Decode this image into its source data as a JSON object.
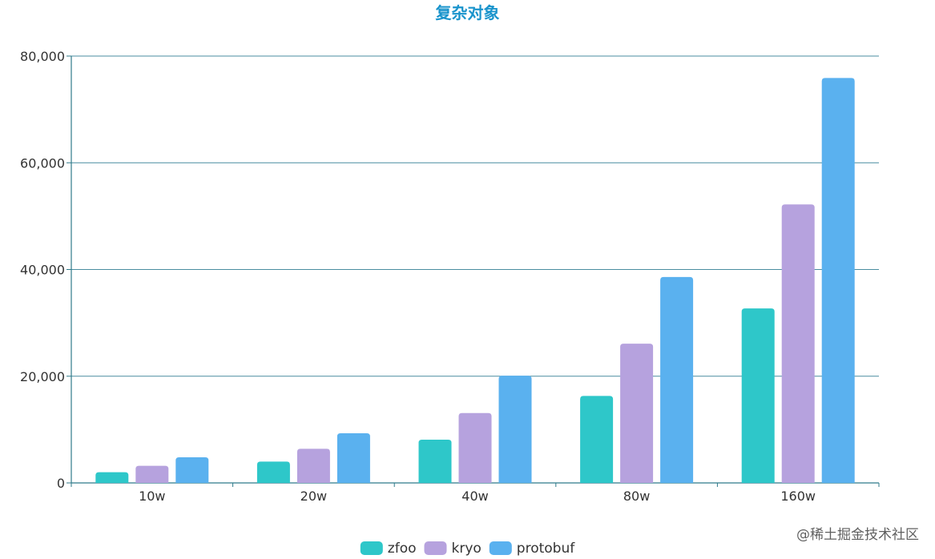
{
  "title": "复杂对象",
  "watermark": "@稀土掘金技术社区",
  "colors": {
    "title": "#1a94cc",
    "axis": "#2f7a8a",
    "grid": "#4a8ea0",
    "text": "#333333",
    "watermark": "#444444"
  },
  "chart_data": {
    "type": "bar",
    "categories": [
      "10w",
      "20w",
      "40w",
      "80w",
      "160w"
    ],
    "series": [
      {
        "name": "zfoo",
        "color": "#2ec7c9",
        "values": [
          2000,
          4000,
          8100,
          16300,
          32700
        ]
      },
      {
        "name": "kryo",
        "color": "#b6a2de",
        "values": [
          3200,
          6400,
          13100,
          26100,
          52200
        ]
      },
      {
        "name": "protobuf",
        "color": "#5ab1ef",
        "values": [
          4800,
          9300,
          20100,
          38600,
          75900
        ]
      }
    ],
    "ylim": [
      0,
      80000
    ],
    "yticks": [
      0,
      20000,
      40000,
      60000,
      80000
    ],
    "ytick_labels": [
      "0",
      "20,000",
      "40,000",
      "60,000",
      "80,000"
    ],
    "grid": true,
    "legend": "bottom-center"
  }
}
